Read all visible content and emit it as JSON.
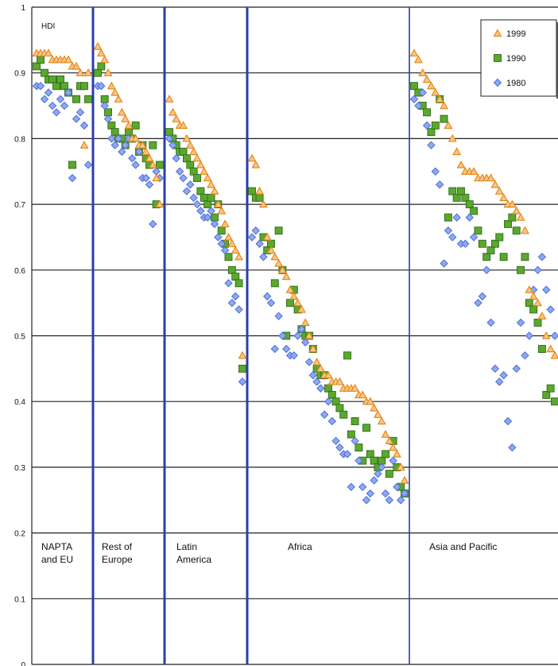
{
  "chart_data": {
    "type": "scatter",
    "title": "",
    "ylabel": "HDI",
    "xlabel": "",
    "ylim": [
      0,
      1
    ],
    "yticks": [
      0,
      0.1,
      0.2,
      0.3,
      0.4,
      0.5,
      0.6,
      0.7,
      0.8,
      0.9,
      1
    ],
    "ytick_labels": [
      "0",
      "0.1",
      "0.2",
      "0.3",
      "0.4",
      "0.5",
      "0.6",
      "0.7",
      "0.8",
      "0.9",
      "1"
    ],
    "grid": true,
    "legend_position": "top-right",
    "colors": {
      "s1999": "#e8820c",
      "s1990": "#5aa82e",
      "s1980": "#4a6fd8",
      "region_divider": "#2a3fa8",
      "grid": "#222222"
    },
    "regions": [
      {
        "label_lines": [
          "NAPTA",
          "and EU"
        ]
      },
      {
        "label_lines": [
          "Rest of",
          "Europe"
        ]
      },
      {
        "label_lines": [
          "Latin",
          "America"
        ]
      },
      {
        "label_lines": [
          "Africa"
        ]
      },
      {
        "label_lines": [
          "Asia and Pacific"
        ]
      }
    ],
    "series": [
      {
        "name": "1999",
        "marker": "triangle",
        "groups": [
          [
            0.93,
            0.93,
            0.93,
            0.93,
            0.92,
            0.92,
            0.92,
            0.92,
            0.92,
            0.91,
            0.91,
            0.9,
            0.79,
            0.9
          ],
          [
            0.94,
            0.93,
            0.92,
            0.9,
            0.88,
            0.87,
            0.86,
            0.84,
            0.83,
            0.82,
            0.8,
            0.8,
            0.79,
            0.79,
            0.78,
            0.77,
            0.76,
            0.74,
            0.7
          ],
          [
            0.86,
            0.84,
            0.83,
            0.82,
            0.82,
            0.8,
            0.79,
            0.78,
            0.77,
            0.76,
            0.75,
            0.74,
            0.73,
            0.72,
            0.7,
            0.69,
            0.67,
            0.65,
            0.64,
            0.63,
            0.62,
            0.47
          ],
          [
            0.77,
            0.76,
            0.72,
            0.7,
            0.65,
            0.63,
            0.62,
            0.61,
            0.6,
            0.59,
            0.57,
            0.56,
            0.55,
            0.54,
            0.52,
            0.5,
            0.48,
            0.46,
            0.45,
            0.44,
            0.44,
            0.43,
            0.43,
            0.43,
            0.42,
            0.42,
            0.42,
            0.42,
            0.41,
            0.41,
            0.4,
            0.4,
            0.39,
            0.38,
            0.37,
            0.35,
            0.34,
            0.33,
            0.32,
            0.3,
            0.28
          ],
          [
            0.93,
            0.92,
            0.9,
            0.89,
            0.88,
            0.87,
            0.86,
            0.85,
            0.82,
            0.8,
            0.78,
            0.76,
            0.75,
            0.75,
            0.75,
            0.74,
            0.74,
            0.74,
            0.74,
            0.73,
            0.72,
            0.71,
            0.7,
            0.7,
            0.69,
            0.68,
            0.66,
            0.57,
            0.56,
            0.55,
            0.53,
            0.5,
            0.48,
            0.47
          ]
        ]
      },
      {
        "name": "1990",
        "marker": "square",
        "groups": [
          [
            0.91,
            0.92,
            0.9,
            0.89,
            0.89,
            0.88,
            0.89,
            0.88,
            0.87,
            0.76,
            0.86,
            0.88,
            0.88,
            0.86
          ],
          [
            0.9,
            0.91,
            0.86,
            0.84,
            0.82,
            0.81,
            0.8,
            0.8,
            0.79,
            0.81,
            0.8,
            0.82,
            0.78,
            0.79,
            0.77,
            0.76,
            0.79,
            0.7,
            0.76
          ],
          [
            0.81,
            0.8,
            0.79,
            0.78,
            0.78,
            0.77,
            0.76,
            0.75,
            0.74,
            0.72,
            0.71,
            0.7,
            0.71,
            0.68,
            0.7,
            0.66,
            0.64,
            0.62,
            0.6,
            0.59,
            0.58,
            0.45
          ],
          [
            0.72,
            0.71,
            0.71,
            0.65,
            0.63,
            0.64,
            0.58,
            0.66,
            0.6,
            0.5,
            0.55,
            0.57,
            0.54,
            0.51,
            0.5,
            0.5,
            0.48,
            0.45,
            0.44,
            0.44,
            0.42,
            0.41,
            0.4,
            0.39,
            0.38,
            0.47,
            0.35,
            0.37,
            0.33,
            0.31,
            0.36,
            0.32,
            0.31,
            0.3,
            0.31,
            0.32,
            0.29,
            0.34,
            0.3,
            0.27,
            0.26
          ],
          [
            0.88,
            0.87,
            0.85,
            0.84,
            0.81,
            0.82,
            0.86,
            0.83,
            0.68,
            0.72,
            0.71,
            0.72,
            0.71,
            0.7,
            0.69,
            0.66,
            0.64,
            0.62,
            0.63,
            0.64,
            0.65,
            0.62,
            0.67,
            0.68,
            0.66,
            0.6,
            0.62,
            0.55,
            0.54,
            0.52,
            0.48,
            0.41,
            0.42,
            0.4
          ]
        ]
      },
      {
        "name": "1980",
        "marker": "diamond",
        "groups": [
          [
            0.88,
            0.88,
            0.86,
            0.87,
            0.85,
            0.84,
            0.86,
            0.85,
            0.87,
            0.74,
            0.83,
            0.84,
            0.82,
            0.76
          ],
          [
            0.88,
            0.88,
            0.85,
            0.83,
            0.8,
            0.79,
            0.8,
            0.78,
            0.79,
            0.8,
            0.77,
            0.76,
            0.78,
            0.74,
            0.74,
            0.73,
            0.67,
            0.75,
            0.74
          ],
          [
            0.8,
            0.79,
            0.77,
            0.75,
            0.74,
            0.72,
            0.73,
            0.71,
            0.7,
            0.69,
            0.68,
            0.68,
            0.69,
            0.67,
            0.65,
            0.64,
            0.63,
            0.58,
            0.55,
            0.56,
            0.54,
            0.43
          ],
          [
            0.65,
            0.66,
            0.64,
            0.62,
            0.56,
            0.55,
            0.48,
            0.53,
            0.5,
            0.48,
            0.47,
            0.47,
            0.5,
            0.51,
            0.49,
            0.46,
            0.44,
            0.43,
            0.42,
            0.38,
            0.4,
            0.37,
            0.34,
            0.33,
            0.32,
            0.32,
            0.27,
            0.34,
            0.31,
            0.27,
            0.25,
            0.26,
            0.28,
            0.29,
            0.3,
            0.26,
            0.25,
            0.31,
            0.27,
            0.25,
            0.26
          ],
          [
            0.86,
            0.85,
            0.87,
            0.82,
            0.79,
            0.75,
            0.73,
            0.61,
            0.66,
            0.65,
            0.68,
            0.64,
            0.64,
            0.68,
            0.65,
            0.55,
            0.56,
            0.6,
            0.52,
            0.45,
            0.43,
            0.44,
            0.37,
            0.33,
            0.45,
            0.52,
            0.47,
            0.5,
            0.57,
            0.6,
            0.62,
            0.57,
            0.54,
            0.5
          ]
        ]
      }
    ]
  }
}
